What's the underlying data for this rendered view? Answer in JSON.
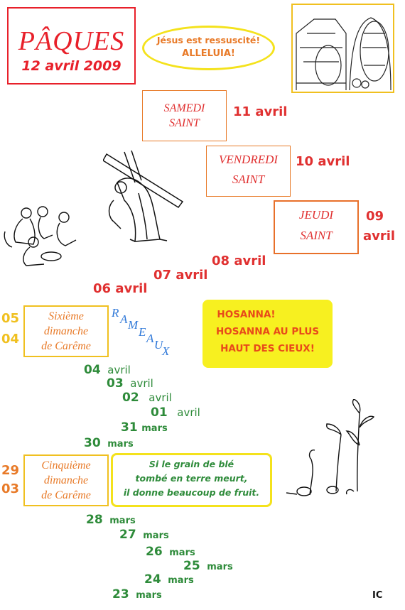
{
  "title": {
    "main": "PÂQUES",
    "date": "12 avril 2009"
  },
  "resurrection": {
    "line1": "Jésus est ressuscité!",
    "line2": "ALLELUIA!"
  },
  "holy_days": {
    "samedi": {
      "name_l1": "SAMEDI",
      "name_l2": "SAINT",
      "date": "11 avril"
    },
    "vendredi": {
      "name_l1": "VENDREDI",
      "name_l2": "SAINT",
      "date": "10 avril"
    },
    "jeudi": {
      "name_l1": "JEUDI",
      "name_l2": "SAINT",
      "date_day": "09",
      "date_month": "avril"
    }
  },
  "holy_week_dates": {
    "d08": "08 avril",
    "d07": "07 avril",
    "d06": "06 avril"
  },
  "sixth_sunday": {
    "day_top": "05",
    "day_bottom": "04",
    "line1": "Sixième",
    "line2": "dimanche",
    "line3": "de Carême"
  },
  "rameaux": [
    "R",
    "A",
    "M",
    "E",
    "A",
    "U",
    "X"
  ],
  "hosanna": {
    "line1": "HOSANNA!",
    "line2": "HOSANNA AU PLUS",
    "line3": "HAUT DES CIEUX!"
  },
  "april_dates": [
    {
      "day": "04",
      "month": "avril"
    },
    {
      "day": "03",
      "month": "avril"
    },
    {
      "day": "02",
      "month": "avril"
    },
    {
      "day": "01",
      "month": "avril"
    },
    {
      "day": "31",
      "month": "mars"
    },
    {
      "day": "30",
      "month": "mars"
    }
  ],
  "fifth_sunday": {
    "day_top": "29",
    "day_bottom": "03",
    "line1": "Cinquième",
    "line2": "dimanche",
    "line3": "de Carême"
  },
  "grain": {
    "line1": "Si le grain de blé",
    "line2": "tombé en terre meurt,",
    "line3": "il donne beaucoup de fruit."
  },
  "march_dates": [
    {
      "day": "28",
      "month": "mars"
    },
    {
      "day": "27",
      "month": "mars"
    },
    {
      "day": "26",
      "month": "mars"
    },
    {
      "day": "25",
      "month": "mars"
    },
    {
      "day": "24",
      "month": "mars"
    },
    {
      "day": "23",
      "month": "mars"
    }
  ],
  "signature": "IC",
  "colors": {
    "red": "#e8202a",
    "orange": "#e87a28",
    "yellow": "#f0c020",
    "green": "#2e8b3a",
    "blue": "#2f78d8"
  },
  "illustrations": [
    "empty-tomb-illustration",
    "jesus-carrying-cross-illustration",
    "washing-feet-illustration",
    "sprouting-wheat-illustration"
  ]
}
